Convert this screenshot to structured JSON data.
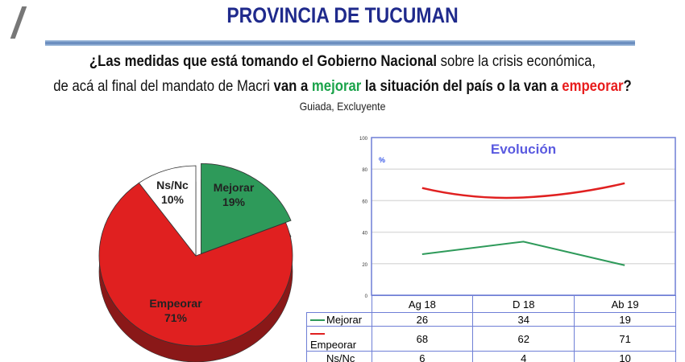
{
  "header": {
    "title": "PROVINCIA DE TUCUMAN"
  },
  "question": {
    "line1_bold": "¿Las medidas que está tomando el Gobierno Nacional",
    "line1_rest": " sobre la crisis económica,",
    "line2_start": "de acá al final del mandato de Macri ",
    "line2_b1": "van a ",
    "line2_green": "mejorar",
    "line2_b2": " la situación del país o la van a ",
    "line2_red": "empeorar",
    "line2_end": "?",
    "subtitle": "Guiada, Excluyente"
  },
  "colors": {
    "mejorar": "#2e9a5a",
    "empeorar": "#e02020",
    "nsnc": "#ffffff",
    "title": "#1f2a8c",
    "chart_title": "#5a5ae0",
    "grid_border": "#6f7fd6"
  },
  "chart_data": [
    {
      "type": "pie",
      "slices": [
        {
          "label": "Mejorar",
          "value": 19,
          "display": "19%"
        },
        {
          "label": "Empeorar",
          "value": 71,
          "display": "71%"
        },
        {
          "label": "Ns/Nc",
          "value": 10,
          "display": "10%"
        }
      ]
    },
    {
      "type": "line",
      "title": "Evolución",
      "ylabel": "%",
      "ylim": [
        0,
        100
      ],
      "yticks": [
        "0",
        "20",
        "40",
        "60",
        "80",
        "100"
      ],
      "grid": true,
      "categories": [
        "Ag 18",
        "D 18",
        "Ab 19"
      ],
      "series": [
        {
          "name": "Mejorar",
          "values": [
            26,
            34,
            19
          ]
        },
        {
          "name": "Empeorar",
          "values": [
            68,
            62,
            71
          ]
        }
      ],
      "table_rows": [
        {
          "name": "Mejorar",
          "values": [
            "26",
            "34",
            "19"
          ]
        },
        {
          "name": "Empeorar",
          "values": [
            "68",
            "62",
            "71"
          ]
        },
        {
          "name": "Ns/Nc",
          "values": [
            "6",
            "4",
            "10"
          ]
        }
      ]
    }
  ]
}
